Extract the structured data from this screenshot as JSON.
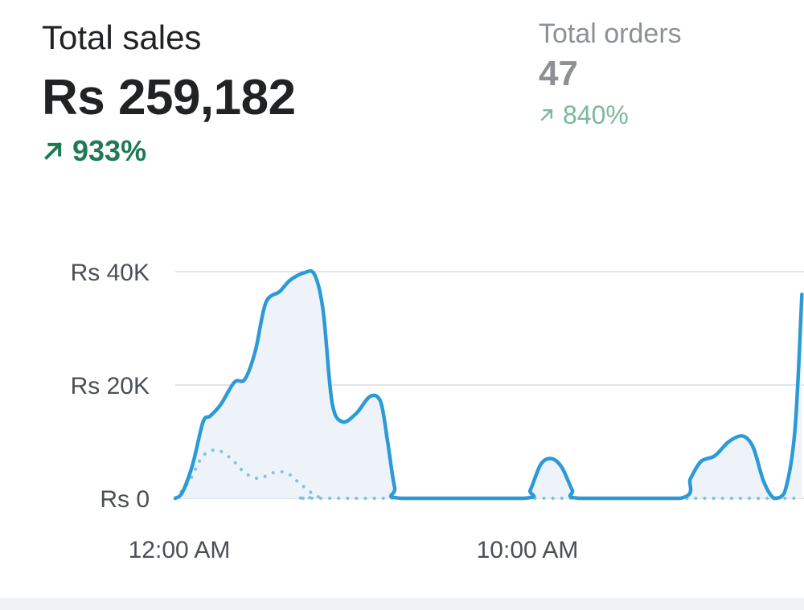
{
  "metrics": {
    "total_sales": {
      "label": "Total sales",
      "value": "Rs 259,182",
      "delta": "933%",
      "trend": "up"
    },
    "total_orders": {
      "label": "Total orders",
      "value": "47",
      "delta": "840%",
      "trend": "up"
    }
  },
  "colors": {
    "primary_line": "#2c9ad6",
    "comparison_line": "#7cc3e6",
    "area_fill": "#eef3fa",
    "gridline": "#d9dbdd",
    "positive": "#1f7a54",
    "positive_muted": "#7db89b"
  },
  "chart_data": {
    "type": "line",
    "title": "",
    "xlabel": "",
    "ylabel": "",
    "ylim": [
      0,
      40000
    ],
    "y_ticks": [
      {
        "value": 40000,
        "label": "Rs 40K"
      },
      {
        "value": 20000,
        "label": "Rs 20K"
      },
      {
        "value": 0,
        "label": "Rs 0"
      }
    ],
    "x_tick_labels": [
      {
        "hour": 0,
        "label": "12:00 AM"
      },
      {
        "hour": 10,
        "label": "10:00 AM"
      }
    ],
    "grid": true,
    "series": [
      {
        "style": "solid",
        "points": [
          [
            0,
            0
          ],
          [
            0.2,
            1000
          ],
          [
            0.5,
            6000
          ],
          [
            0.8,
            13500
          ],
          [
            1,
            14500
          ],
          [
            1.3,
            16500
          ],
          [
            1.7,
            20500
          ],
          [
            2,
            21000
          ],
          [
            2.3,
            26000
          ],
          [
            2.6,
            34500
          ],
          [
            3,
            36500
          ],
          [
            3.3,
            38500
          ],
          [
            3.7,
            39800
          ],
          [
            4,
            39500
          ],
          [
            4.25,
            33000
          ],
          [
            4.5,
            17000
          ],
          [
            4.8,
            13500
          ],
          [
            5.2,
            15000
          ],
          [
            5.6,
            18000
          ],
          [
            5.9,
            17000
          ],
          [
            6.1,
            10000
          ],
          [
            6.3,
            2000
          ],
          [
            6.5,
            0
          ],
          [
            10,
            0
          ],
          [
            10.2,
            1500
          ],
          [
            10.5,
            6000
          ],
          [
            10.8,
            7000
          ],
          [
            11.1,
            5500
          ],
          [
            11.4,
            1500
          ],
          [
            11.6,
            0
          ],
          [
            14.5,
            0
          ],
          [
            14.8,
            3500
          ],
          [
            15.1,
            6500
          ],
          [
            15.5,
            7500
          ],
          [
            15.9,
            10000
          ],
          [
            16.3,
            11000
          ],
          [
            16.6,
            9000
          ],
          [
            16.9,
            3000
          ],
          [
            17.2,
            0
          ],
          [
            17.5,
            1000
          ],
          [
            17.8,
            12000
          ],
          [
            18,
            36000
          ]
        ]
      },
      {
        "style": "dotted",
        "points": [
          [
            0,
            0
          ],
          [
            0.4,
            3000
          ],
          [
            0.8,
            7500
          ],
          [
            1.2,
            8500
          ],
          [
            1.6,
            7000
          ],
          [
            2,
            4500
          ],
          [
            2.4,
            3500
          ],
          [
            2.8,
            4500
          ],
          [
            3.2,
            4500
          ],
          [
            3.6,
            2500
          ],
          [
            4.1,
            300
          ],
          [
            4.6,
            0
          ],
          [
            18,
            0
          ]
        ]
      }
    ]
  }
}
